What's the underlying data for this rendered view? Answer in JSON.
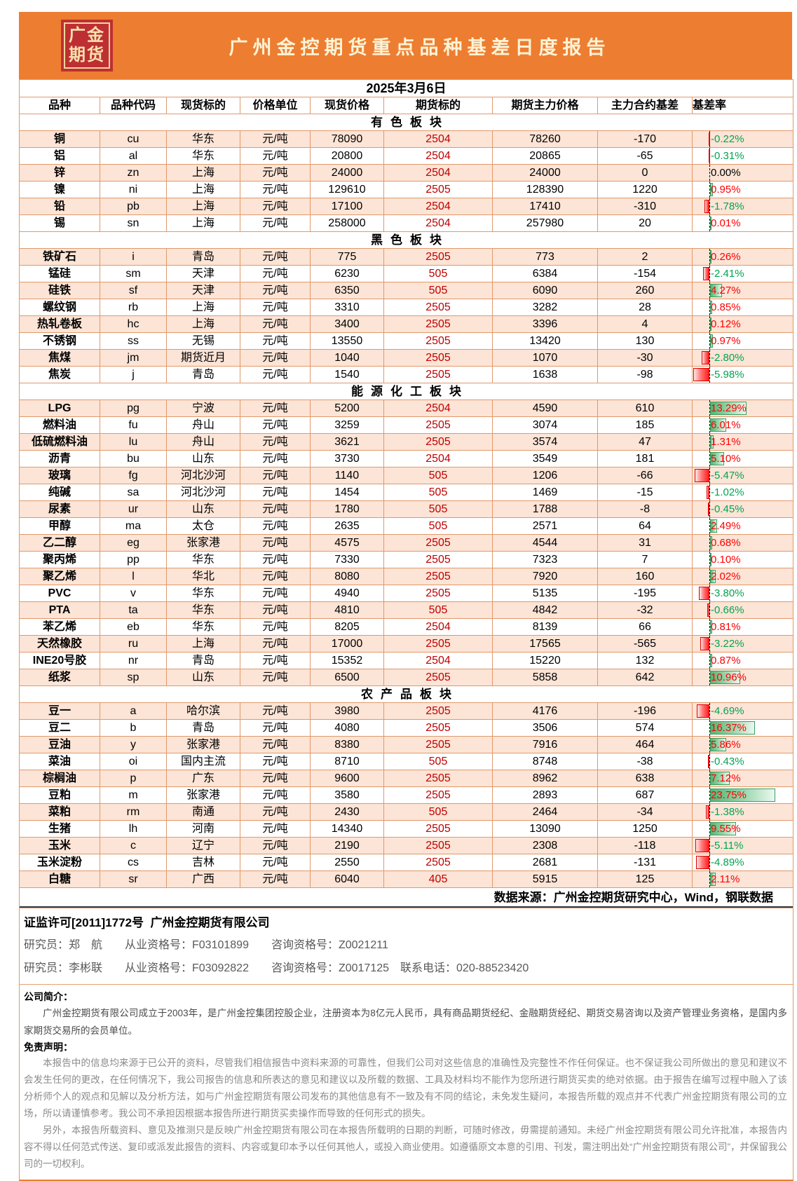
{
  "brand": {
    "logo_line1": "广金",
    "logo_line2": "期货",
    "title": "广州金控期货重点品种基差日度报告"
  },
  "report_date": "2025年3月6日",
  "columns": [
    "品种",
    "品种代码",
    "现货标的",
    "价格单位",
    "现货价格",
    "期货标的",
    "期货主力价格",
    "主力合约基差",
    "基差率"
  ],
  "colors": {
    "banner_orange": "#ED7D31",
    "logo_red": "#BE2F33",
    "logo_gold": "#F7E3AE",
    "grid_orange": "#E0996B",
    "row_peach": "#FCE4D6",
    "contract_red": "#C00000",
    "rate_positive_red": "#FF0000",
    "rate_negative_green": "#00A550",
    "bar_green": "#63BE7B",
    "bar_red": "#FF1F1F"
  },
  "sections": [
    {
      "name": "有色板块",
      "rows": [
        {
          "name": "铜",
          "code": "cu",
          "spot": "华东",
          "unit": "元/吨",
          "spot_price": "78090",
          "contract": "2504",
          "futures_price": "78260",
          "basis": "-170",
          "rate": -0.22
        },
        {
          "name": "铝",
          "code": "al",
          "spot": "华东",
          "unit": "元/吨",
          "spot_price": "20800",
          "contract": "2504",
          "futures_price": "20865",
          "basis": "-65",
          "rate": -0.31
        },
        {
          "name": "锌",
          "code": "zn",
          "spot": "上海",
          "unit": "元/吨",
          "spot_price": "24000",
          "contract": "2504",
          "futures_price": "24000",
          "basis": "0",
          "rate": 0.0
        },
        {
          "name": "镍",
          "code": "ni",
          "spot": "上海",
          "unit": "元/吨",
          "spot_price": "129610",
          "contract": "2505",
          "futures_price": "128390",
          "basis": "1220",
          "rate": 0.95
        },
        {
          "name": "铅",
          "code": "pb",
          "spot": "上海",
          "unit": "元/吨",
          "spot_price": "17100",
          "contract": "2504",
          "futures_price": "17410",
          "basis": "-310",
          "rate": -1.78
        },
        {
          "name": "锡",
          "code": "sn",
          "spot": "上海",
          "unit": "元/吨",
          "spot_price": "258000",
          "contract": "2504",
          "futures_price": "257980",
          "basis": "20",
          "rate": 0.01
        }
      ]
    },
    {
      "name": "黑色板块",
      "rows": [
        {
          "name": "铁矿石",
          "code": "i",
          "spot": "青岛",
          "unit": "元/吨",
          "spot_price": "775",
          "contract": "2505",
          "futures_price": "773",
          "basis": "2",
          "rate": 0.26
        },
        {
          "name": "锰硅",
          "code": "sm",
          "spot": "天津",
          "unit": "元/吨",
          "spot_price": "6230",
          "contract": "505",
          "futures_price": "6384",
          "basis": "-154",
          "rate": -2.41
        },
        {
          "name": "硅铁",
          "code": "sf",
          "spot": "天津",
          "unit": "元/吨",
          "spot_price": "6350",
          "contract": "505",
          "futures_price": "6090",
          "basis": "260",
          "rate": 4.27
        },
        {
          "name": "螺纹钢",
          "code": "rb",
          "spot": "上海",
          "unit": "元/吨",
          "spot_price": "3310",
          "contract": "2505",
          "futures_price": "3282",
          "basis": "28",
          "rate": 0.85
        },
        {
          "name": "热轧卷板",
          "code": "hc",
          "spot": "上海",
          "unit": "元/吨",
          "spot_price": "3400",
          "contract": "2505",
          "futures_price": "3396",
          "basis": "4",
          "rate": 0.12
        },
        {
          "name": "不锈钢",
          "code": "ss",
          "spot": "无锡",
          "unit": "元/吨",
          "spot_price": "13550",
          "contract": "2505",
          "futures_price": "13420",
          "basis": "130",
          "rate": 0.97
        },
        {
          "name": "焦煤",
          "code": "jm",
          "spot": "期货近月",
          "unit": "元/吨",
          "spot_price": "1040",
          "contract": "2505",
          "futures_price": "1070",
          "basis": "-30",
          "rate": -2.8
        },
        {
          "name": "焦炭",
          "code": "j",
          "spot": "青岛",
          "unit": "元/吨",
          "spot_price": "1540",
          "contract": "2505",
          "futures_price": "1638",
          "basis": "-98",
          "rate": -5.98
        }
      ]
    },
    {
      "name": "能源化工板块",
      "rows": [
        {
          "name": "LPG",
          "code": "pg",
          "spot": "宁波",
          "unit": "元/吨",
          "spot_price": "5200",
          "contract": "2504",
          "futures_price": "4590",
          "basis": "610",
          "rate": 13.29
        },
        {
          "name": "燃料油",
          "code": "fu",
          "spot": "舟山",
          "unit": "元/吨",
          "spot_price": "3259",
          "contract": "2505",
          "futures_price": "3074",
          "basis": "185",
          "rate": 6.01
        },
        {
          "name": "低硫燃料油",
          "code": "lu",
          "spot": "舟山",
          "unit": "元/吨",
          "spot_price": "3621",
          "contract": "2505",
          "futures_price": "3574",
          "basis": "47",
          "rate": 1.31
        },
        {
          "name": "沥青",
          "code": "bu",
          "spot": "山东",
          "unit": "元/吨",
          "spot_price": "3730",
          "contract": "2504",
          "futures_price": "3549",
          "basis": "181",
          "rate": 5.1
        },
        {
          "name": "玻璃",
          "code": "fg",
          "spot": "河北沙河",
          "unit": "元/吨",
          "spot_price": "1140",
          "contract": "505",
          "futures_price": "1206",
          "basis": "-66",
          "rate": -5.47
        },
        {
          "name": "纯碱",
          "code": "sa",
          "spot": "河北沙河",
          "unit": "元/吨",
          "spot_price": "1454",
          "contract": "505",
          "futures_price": "1469",
          "basis": "-15",
          "rate": -1.02
        },
        {
          "name": "尿素",
          "code": "ur",
          "spot": "山东",
          "unit": "元/吨",
          "spot_price": "1780",
          "contract": "505",
          "futures_price": "1788",
          "basis": "-8",
          "rate": -0.45
        },
        {
          "name": "甲醇",
          "code": "ma",
          "spot": "太仓",
          "unit": "元/吨",
          "spot_price": "2635",
          "contract": "505",
          "futures_price": "2571",
          "basis": "64",
          "rate": 2.49
        },
        {
          "name": "乙二醇",
          "code": "eg",
          "spot": "张家港",
          "unit": "元/吨",
          "spot_price": "4575",
          "contract": "2505",
          "futures_price": "4544",
          "basis": "31",
          "rate": 0.68
        },
        {
          "name": "聚丙烯",
          "code": "pp",
          "spot": "华东",
          "unit": "元/吨",
          "spot_price": "7330",
          "contract": "2505",
          "futures_price": "7323",
          "basis": "7",
          "rate": 0.1
        },
        {
          "name": "聚乙烯",
          "code": "l",
          "spot": "华北",
          "unit": "元/吨",
          "spot_price": "8080",
          "contract": "2505",
          "futures_price": "7920",
          "basis": "160",
          "rate": 2.02
        },
        {
          "name": "PVC",
          "code": "v",
          "spot": "华东",
          "unit": "元/吨",
          "spot_price": "4940",
          "contract": "2505",
          "futures_price": "5135",
          "basis": "-195",
          "rate": -3.8
        },
        {
          "name": "PTA",
          "code": "ta",
          "spot": "华东",
          "unit": "元/吨",
          "spot_price": "4810",
          "contract": "505",
          "futures_price": "4842",
          "basis": "-32",
          "rate": -0.66
        },
        {
          "name": "苯乙烯",
          "code": "eb",
          "spot": "华东",
          "unit": "元/吨",
          "spot_price": "8205",
          "contract": "2504",
          "futures_price": "8139",
          "basis": "66",
          "rate": 0.81
        },
        {
          "name": "天然橡胶",
          "code": "ru",
          "spot": "上海",
          "unit": "元/吨",
          "spot_price": "17000",
          "contract": "2505",
          "futures_price": "17565",
          "basis": "-565",
          "rate": -3.22
        },
        {
          "name": "INE20号胶",
          "code": "nr",
          "spot": "青岛",
          "unit": "元/吨",
          "spot_price": "15352",
          "contract": "2504",
          "futures_price": "15220",
          "basis": "132",
          "rate": 0.87
        },
        {
          "name": "纸浆",
          "code": "sp",
          "spot": "山东",
          "unit": "元/吨",
          "spot_price": "6500",
          "contract": "2505",
          "futures_price": "5858",
          "basis": "642",
          "rate": 10.96
        }
      ]
    },
    {
      "name": "农产品板块",
      "rows": [
        {
          "name": "豆一",
          "code": "a",
          "spot": "哈尔滨",
          "unit": "元/吨",
          "spot_price": "3980",
          "contract": "2505",
          "futures_price": "4176",
          "basis": "-196",
          "rate": -4.69
        },
        {
          "name": "豆二",
          "code": "b",
          "spot": "青岛",
          "unit": "元/吨",
          "spot_price": "4080",
          "contract": "2505",
          "futures_price": "3506",
          "basis": "574",
          "rate": 16.37
        },
        {
          "name": "豆油",
          "code": "y",
          "spot": "张家港",
          "unit": "元/吨",
          "spot_price": "8380",
          "contract": "2505",
          "futures_price": "7916",
          "basis": "464",
          "rate": 5.86
        },
        {
          "name": "菜油",
          "code": "oi",
          "spot": "国内主流",
          "unit": "元/吨",
          "spot_price": "8710",
          "contract": "505",
          "futures_price": "8748",
          "basis": "-38",
          "rate": -0.43
        },
        {
          "name": "棕榈油",
          "code": "p",
          "spot": "广东",
          "unit": "元/吨",
          "spot_price": "9600",
          "contract": "2505",
          "futures_price": "8962",
          "basis": "638",
          "rate": 7.12
        },
        {
          "name": "豆粕",
          "code": "m",
          "spot": "张家港",
          "unit": "元/吨",
          "spot_price": "3580",
          "contract": "2505",
          "futures_price": "2893",
          "basis": "687",
          "rate": 23.75
        },
        {
          "name": "菜粕",
          "code": "rm",
          "spot": "南通",
          "unit": "元/吨",
          "spot_price": "2430",
          "contract": "505",
          "futures_price": "2464",
          "basis": "-34",
          "rate": -1.38
        },
        {
          "name": "生猪",
          "code": "lh",
          "spot": "河南",
          "unit": "元/吨",
          "spot_price": "14340",
          "contract": "2505",
          "futures_price": "13090",
          "basis": "1250",
          "rate": 9.55
        },
        {
          "name": "玉米",
          "code": "c",
          "spot": "辽宁",
          "unit": "元/吨",
          "spot_price": "2190",
          "contract": "2505",
          "futures_price": "2308",
          "basis": "-118",
          "rate": -5.11
        },
        {
          "name": "玉米淀粉",
          "code": "cs",
          "spot": "吉林",
          "unit": "元/吨",
          "spot_price": "2550",
          "contract": "2505",
          "futures_price": "2681",
          "basis": "-131",
          "rate": -4.89
        },
        {
          "name": "白糖",
          "code": "sr",
          "spot": "广西",
          "unit": "元/吨",
          "spot_price": "6040",
          "contract": "405",
          "futures_price": "5915",
          "basis": "125",
          "rate": 2.11
        }
      ]
    }
  ],
  "footer": {
    "data_source": "数据来源：广州金控期货研究中心，Wind，钢联数据",
    "license_line": "证监许可[2011]1772号  广州金控期货有限公司",
    "researcher_line1": "研究员：郑　航　　从业资格号：F03101899　　咨询资格号：Z0021211",
    "researcher_line2": "研究员：李彬联　　从业资格号：F03092822　　咨询资格号：Z0017125　联系电话：020-88523420",
    "company_intro_label": "公司简介：",
    "company_intro": "广州金控期货有限公司成立于2003年，是广州金控集团控股企业，注册资本为8亿元人民币，具有商品期货经纪、金融期货经纪、期货交易咨询以及资产管理业务资格，是国内多家期货交易所的会员单位。",
    "disclaimer_label": "免责声明：",
    "disclaimer_p1": "本报告中的信息均来源于已公开的资料，尽管我们相信报告中资料来源的可靠性，但我们公司对这些信息的准确性及完整性不作任何保证。也不保证我公司所做出的意见和建议不会发生任何的更改，在任何情况下，我公司报告的信息和所表达的意见和建议以及所载的数据、工具及材料均不能作为您所进行期货买卖的绝对依据。由于报告在编写过程中融入了该分析师个人的观点和见解以及分析方法，如与广州金控期货有限公司发布的其他信息有不一致及有不同的结论，未免发生疑问，本报告所载的观点并不代表广州金控期货有限公司的立场，所以请谨慎参考。我公司不承担因根据本报告所进行期货买卖操作而导致的任何形式的损失。",
    "disclaimer_p2": "另外，本报告所载资料、意见及推测只是反映广州金控期货有限公司在本报告所载明的日期的判断，可随时修改，毋需提前通知。未经广州金控期货有限公司允许批准，本报告内容不得以任何范式传送、复印或派发此报告的资料、内容或复印本予以任何其他人，或投入商业使用。如遵循原文本意的引用、刊发，需注明出处“广州金控期货有限公司”，并保留我公司的一切权利。"
  }
}
